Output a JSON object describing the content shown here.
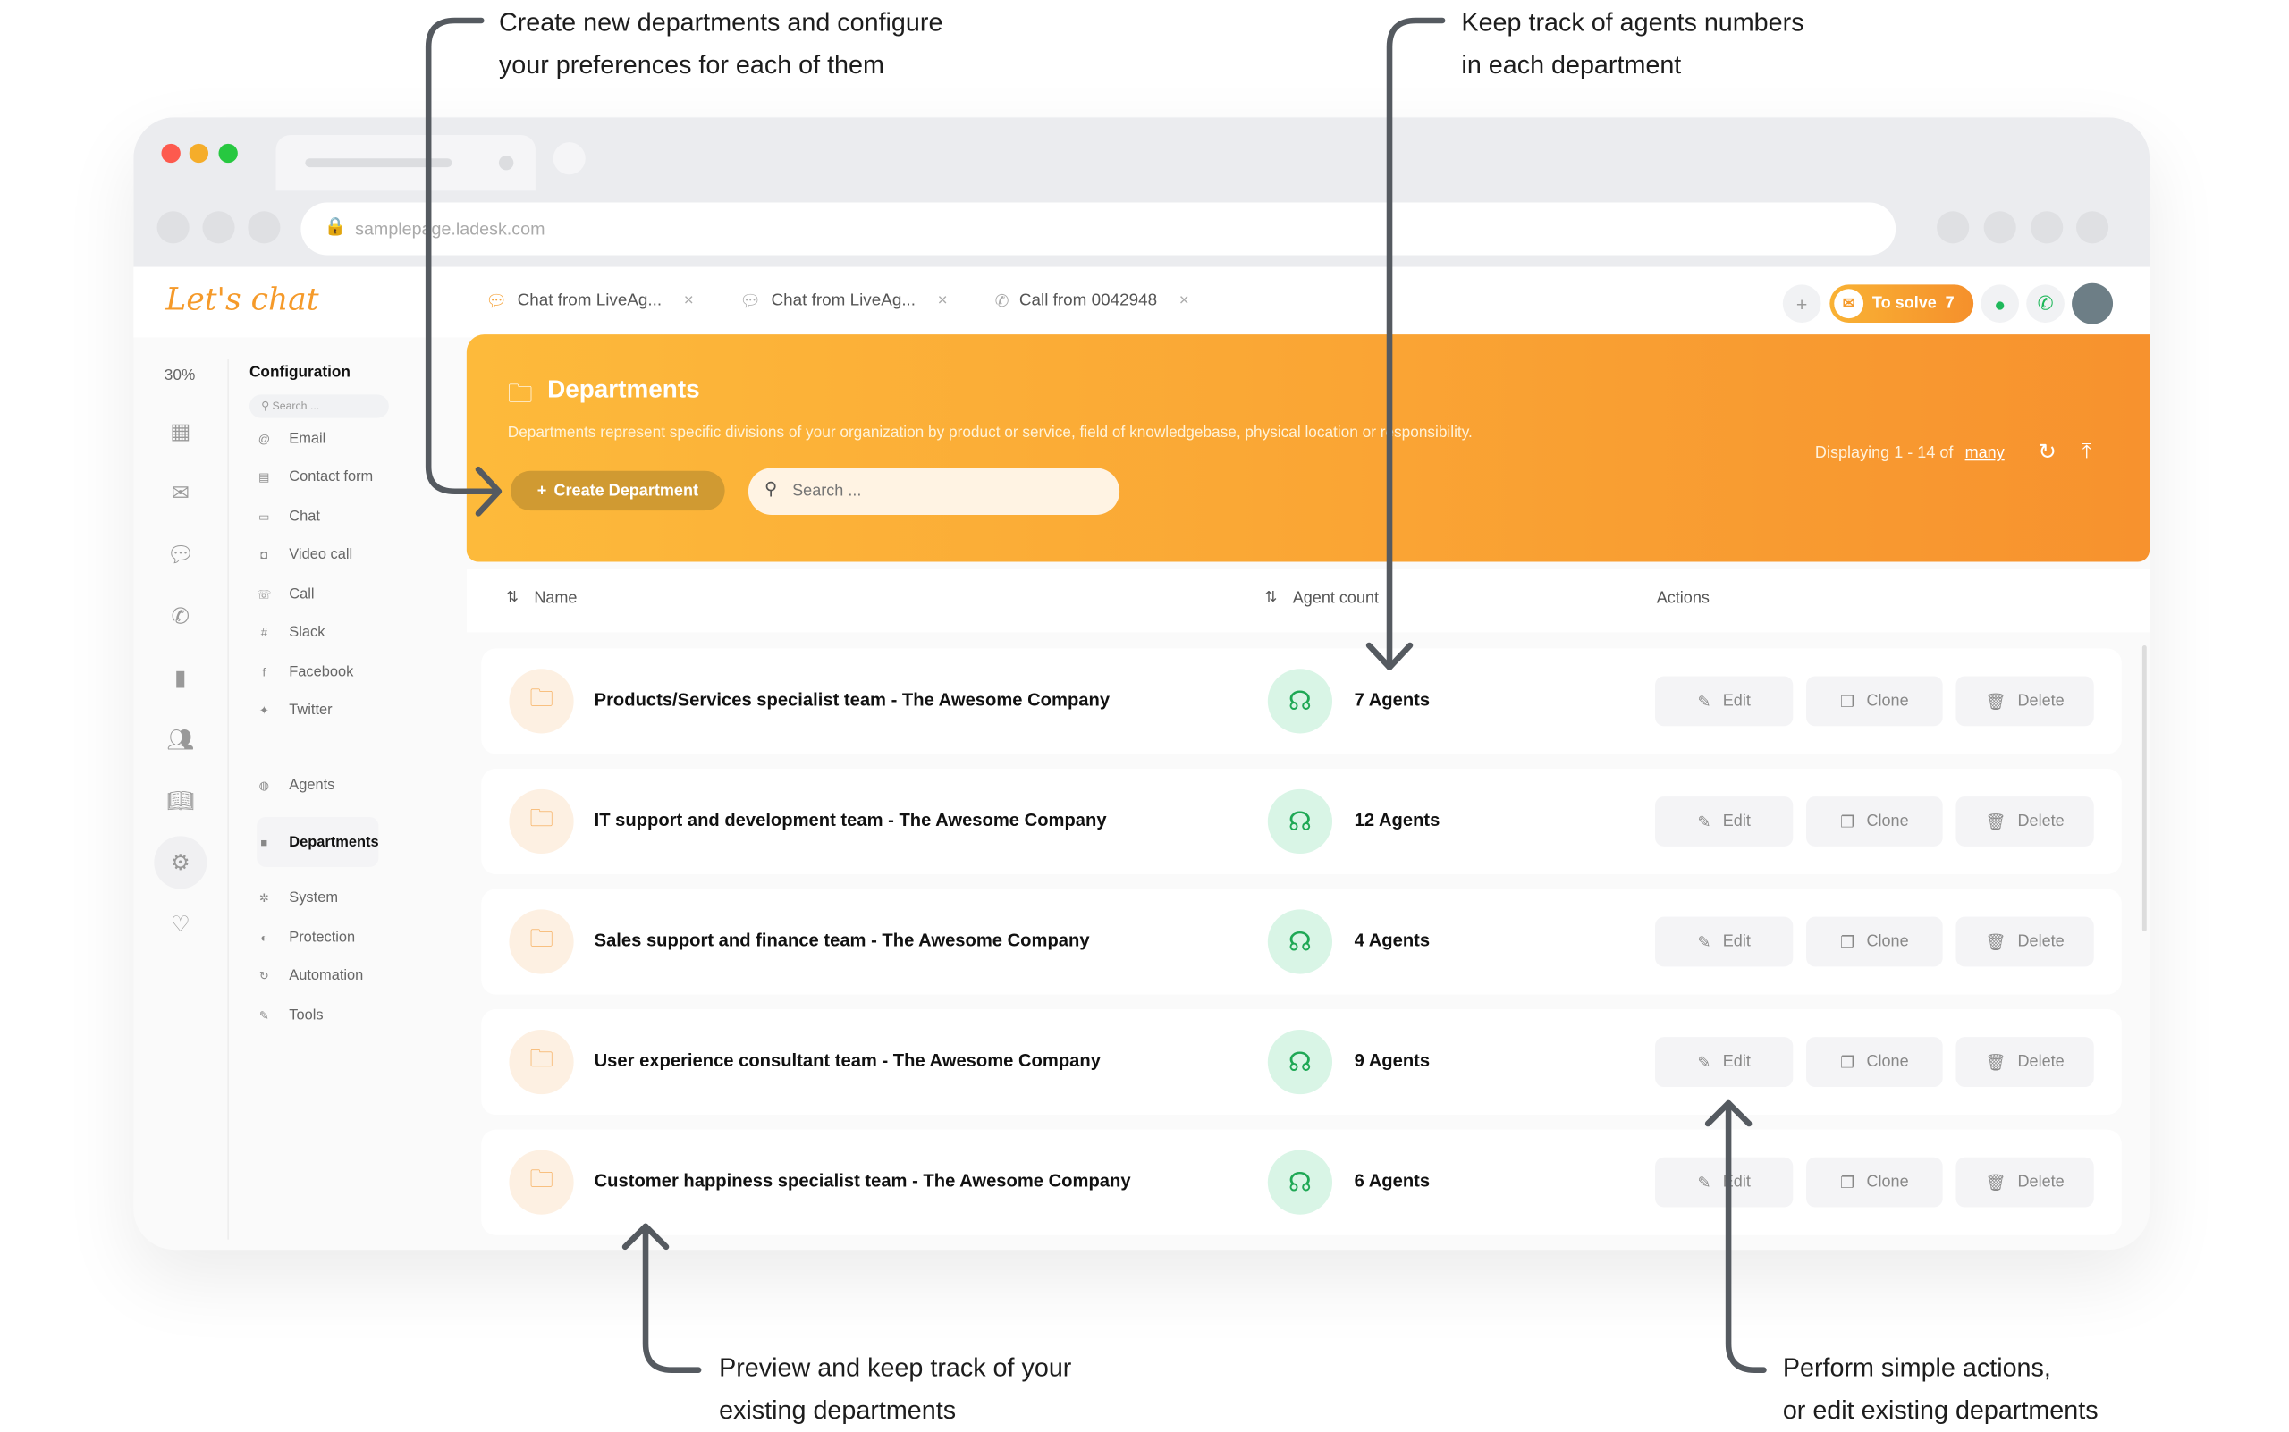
{
  "annotations": [
    {
      "line1": "Create new departments and configure",
      "line2": "your preferences for each of them"
    },
    {
      "line1": "Keep track of agents numbers",
      "line2": "in each department"
    },
    {
      "line1": "Preview and keep track of your",
      "line2": "existing departments"
    },
    {
      "line1": "Perform simple actions,",
      "line2": "or edit existing departments"
    }
  ],
  "browser": {
    "url": "samplepage.ladesk.com"
  },
  "header": {
    "logo": "Let's chat",
    "tabs": [
      {
        "label": "Chat from LiveAg...",
        "icon": "chat-icon",
        "active": true
      },
      {
        "label": "Chat from LiveAg...",
        "icon": "chat-icon",
        "active": false
      },
      {
        "label": "Call from 0042948",
        "icon": "phone-icon",
        "active": false
      }
    ],
    "close": "×",
    "to_solve_label": "To solve",
    "to_solve_count": "7"
  },
  "sidebar": {
    "percent": "30%"
  },
  "config": {
    "title": "Configuration",
    "search_placeholder": "Search ...",
    "items": [
      {
        "label": "Email",
        "icon": "@"
      },
      {
        "label": "Contact form",
        "icon": "▤"
      },
      {
        "label": "Chat",
        "icon": "▭"
      },
      {
        "label": "Video call",
        "icon": "◘"
      },
      {
        "label": "Call",
        "icon": "☏"
      },
      {
        "label": "Slack",
        "icon": "#"
      },
      {
        "label": "Facebook",
        "icon": "f"
      },
      {
        "label": "Twitter",
        "icon": "✦"
      },
      {
        "label": "Agents",
        "icon": "◍"
      },
      {
        "label": "Departments",
        "icon": "■",
        "active": true
      },
      {
        "label": "System",
        "icon": "✲"
      },
      {
        "label": "Protection",
        "icon": "◐"
      },
      {
        "label": "Automation",
        "icon": "↻"
      },
      {
        "label": "Tools",
        "icon": "✎"
      }
    ]
  },
  "panel": {
    "title": "Departments",
    "description": "Departments represent specific divisions of your organization by product or service, field of knowledgebase, physical location or responsibility.",
    "create_label": "Create Department",
    "search_placeholder": "Search ...",
    "displaying": "Displaying 1 - 14 of",
    "many": "many"
  },
  "table": {
    "columns": [
      "Name",
      "Agent count",
      "Actions"
    ],
    "actions": {
      "edit": "Edit",
      "clone": "Clone",
      "delete": "Delete"
    },
    "rows": [
      {
        "name": "Products/Services specialist team - The Awesome Company",
        "agents": "7 Agents"
      },
      {
        "name": "IT support and development team - The Awesome Company",
        "agents": "12 Agents"
      },
      {
        "name": "Sales support and finance team - The Awesome Company",
        "agents": "4 Agents"
      },
      {
        "name": "User experience consultant team  - The Awesome Company",
        "agents": "9 Agents"
      },
      {
        "name": "Customer happiness specialist team - The Awesome Company",
        "agents": "6 Agents"
      }
    ]
  },
  "colors": {
    "accent": "#f7922e",
    "accent_light": "#fdba3b",
    "success": "#1fa855"
  }
}
